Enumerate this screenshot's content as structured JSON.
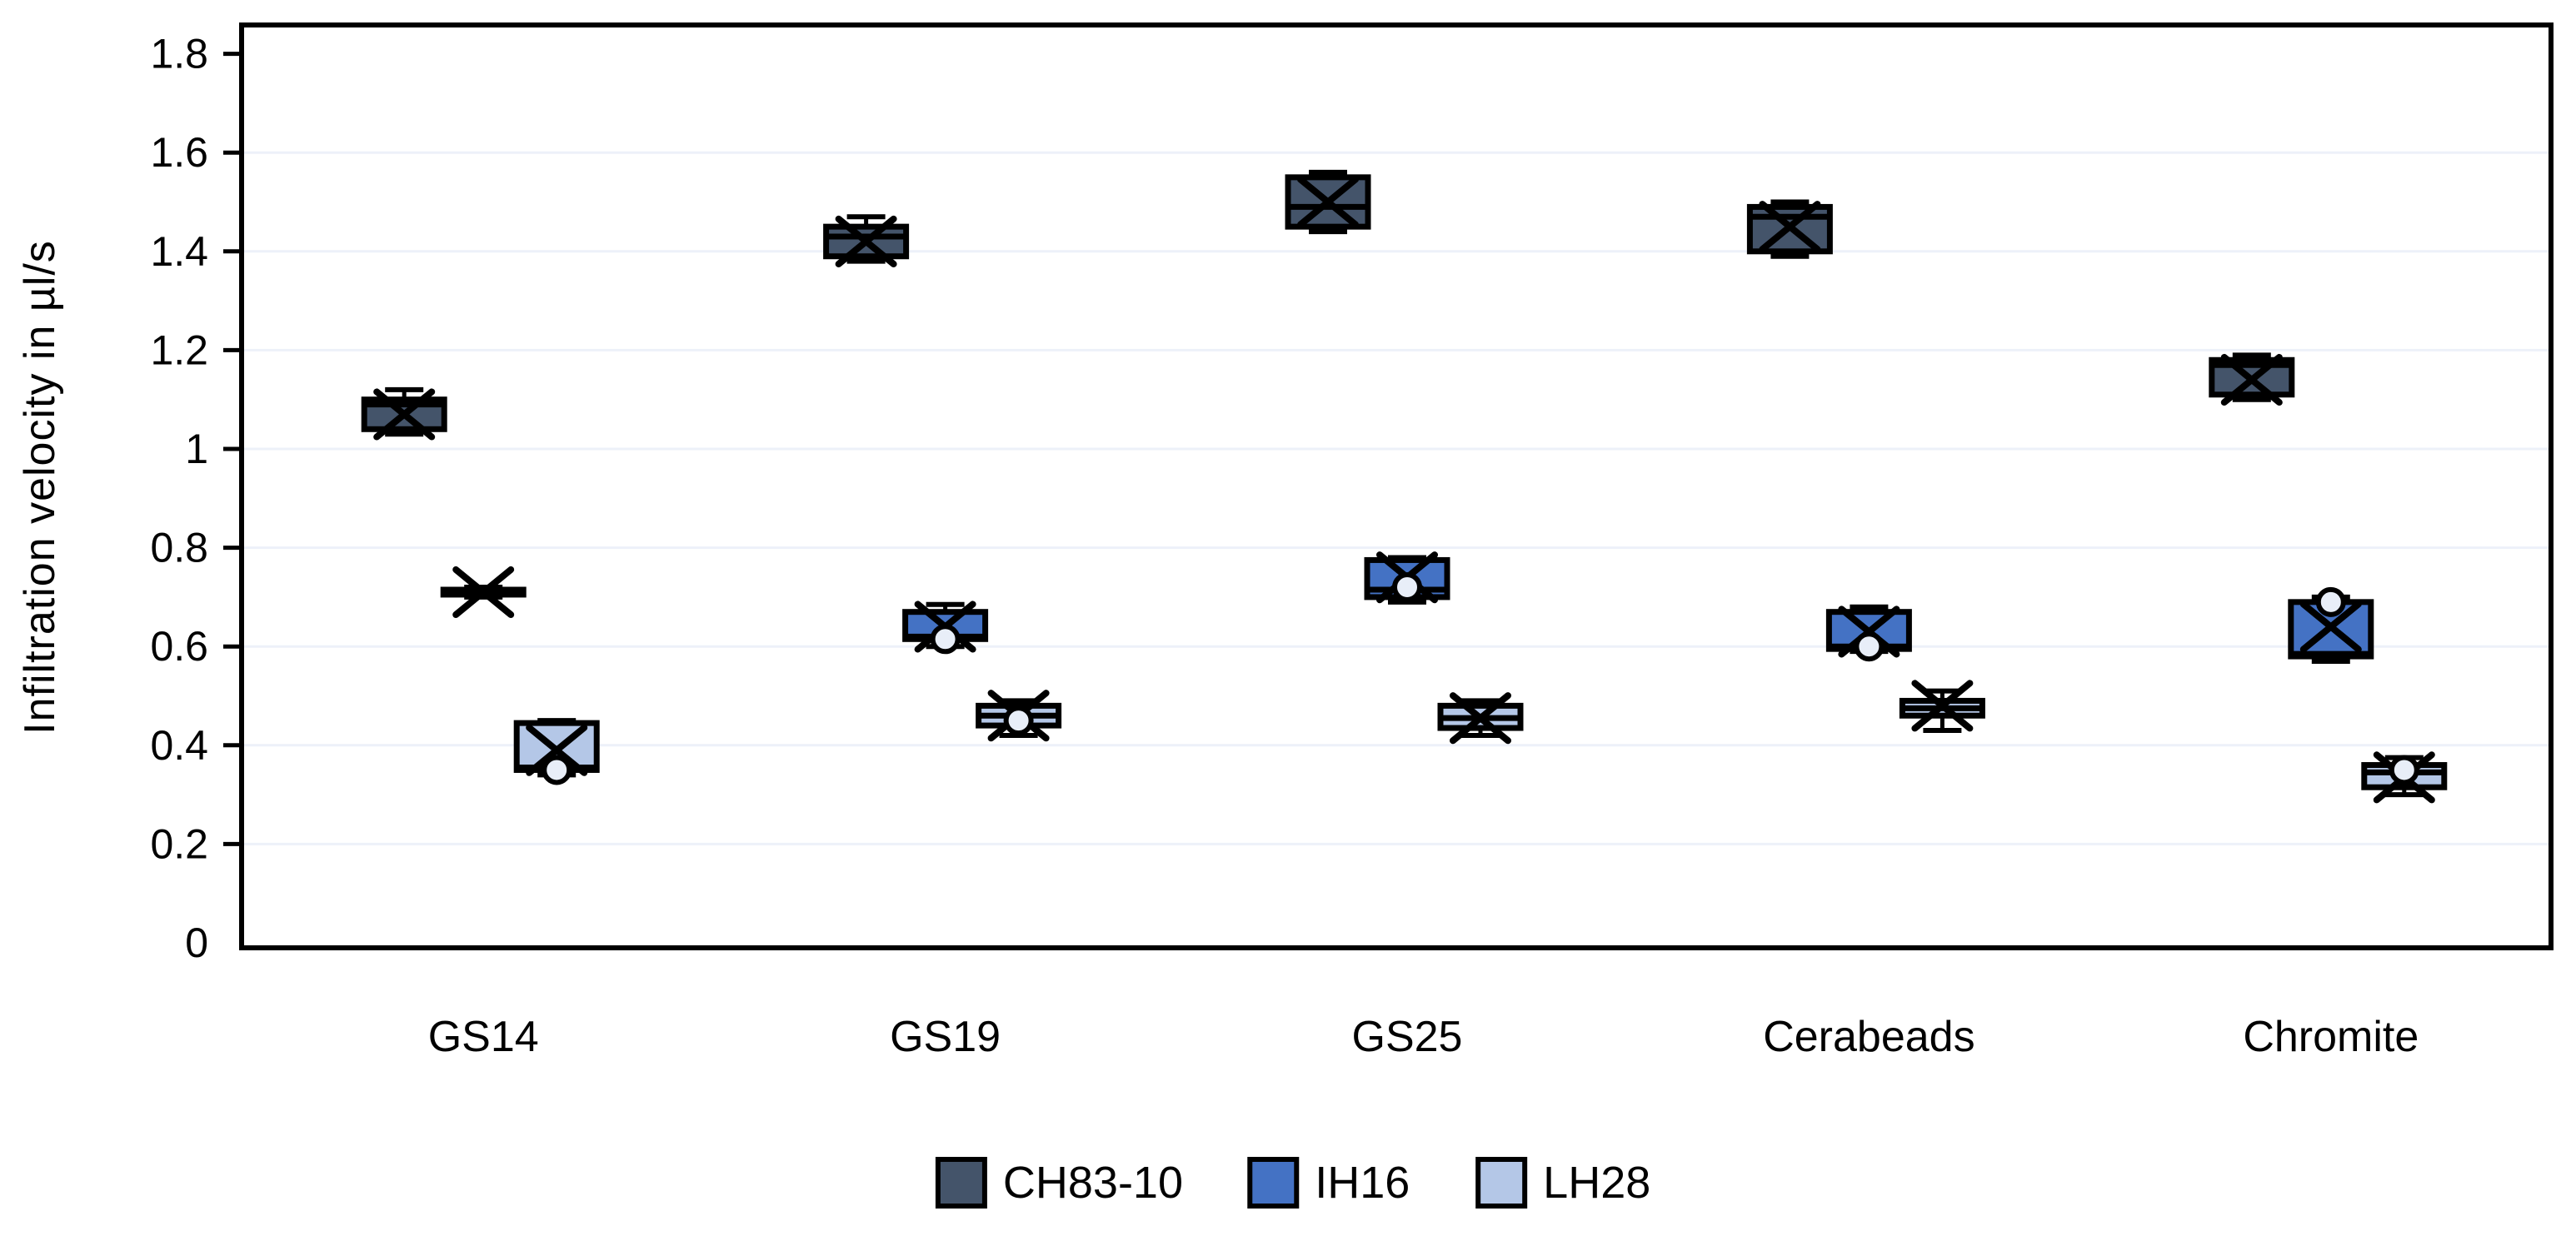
{
  "chart_data": {
    "type": "box",
    "title": "",
    "xlabel": "",
    "ylabel": "Infiltration velocity in µl/s",
    "ylim": [
      0,
      1.8
    ],
    "ytick_step": 0.2,
    "ytick_labels": [
      "0",
      "0.2",
      "0.4",
      "0.6",
      "0.8",
      "1",
      "1.2",
      "1.4",
      "1.6",
      "1.8"
    ],
    "grid": "faint horizontal gridlines every 0.2",
    "legend_position": "bottom-center",
    "categories": [
      "GS14",
      "GS19",
      "GS25",
      "Cerabeads",
      "Chromite"
    ],
    "series": [
      {
        "name": "CH83-10",
        "color": "#44546a",
        "boxes": [
          {
            "whisker_low": 1.03,
            "q1": 1.04,
            "median": 1.09,
            "q3": 1.1,
            "whisker_high": 1.12,
            "mean": 1.07,
            "outliers": []
          },
          {
            "whisker_low": 1.38,
            "q1": 1.39,
            "median": 1.43,
            "q3": 1.45,
            "whisker_high": 1.47,
            "mean": 1.42,
            "outliers": []
          },
          {
            "whisker_low": 1.44,
            "q1": 1.45,
            "median": 1.49,
            "q3": 1.55,
            "whisker_high": 1.56,
            "mean": 1.5,
            "outliers": []
          },
          {
            "whisker_low": 1.39,
            "q1": 1.4,
            "median": 1.47,
            "q3": 1.49,
            "whisker_high": 1.5,
            "mean": 1.45,
            "outliers": []
          },
          {
            "whisker_low": 1.1,
            "q1": 1.11,
            "median": 1.17,
            "q3": 1.18,
            "whisker_high": 1.19,
            "mean": 1.14,
            "outliers": []
          }
        ]
      },
      {
        "name": "IH16",
        "color": "#4472c4",
        "boxes": [
          {
            "whisker_low": 0.7,
            "q1": 0.705,
            "median": 0.71,
            "q3": 0.715,
            "whisker_high": 0.72,
            "mean": 0.71,
            "outliers": []
          },
          {
            "whisker_low": 0.6,
            "q1": 0.615,
            "median": 0.62,
            "q3": 0.67,
            "whisker_high": 0.685,
            "mean": 0.64,
            "outliers": [
              0.615
            ]
          },
          {
            "whisker_low": 0.69,
            "q1": 0.7,
            "median": 0.715,
            "q3": 0.775,
            "whisker_high": 0.78,
            "mean": 0.74,
            "outliers": [
              0.72
            ]
          },
          {
            "whisker_low": 0.59,
            "q1": 0.595,
            "median": 0.6,
            "q3": 0.67,
            "whisker_high": 0.68,
            "mean": 0.63,
            "outliers": [
              0.6
            ]
          },
          {
            "whisker_low": 0.57,
            "q1": 0.58,
            "median": 0.585,
            "q3": 0.69,
            "whisker_high": 0.7,
            "mean": 0.64,
            "outliers": [
              0.69
            ]
          }
        ]
      },
      {
        "name": "LH28",
        "color": "#b4c7e7",
        "boxes": [
          {
            "whisker_low": 0.34,
            "q1": 0.35,
            "median": 0.355,
            "q3": 0.445,
            "whisker_high": 0.45,
            "mean": 0.39,
            "outliers": [
              0.35
            ]
          },
          {
            "whisker_low": 0.42,
            "q1": 0.44,
            "median": 0.46,
            "q3": 0.48,
            "whisker_high": 0.49,
            "mean": 0.46,
            "outliers": [
              0.45
            ]
          },
          {
            "whisker_low": 0.42,
            "q1": 0.435,
            "median": 0.455,
            "q3": 0.48,
            "whisker_high": 0.49,
            "mean": 0.455,
            "outliers": []
          },
          {
            "whisker_low": 0.43,
            "q1": 0.46,
            "median": 0.475,
            "q3": 0.49,
            "whisker_high": 0.51,
            "mean": 0.48,
            "outliers": []
          },
          {
            "whisker_low": 0.3,
            "q1": 0.315,
            "median": 0.345,
            "q3": 0.36,
            "whisker_high": 0.375,
            "mean": 0.335,
            "outliers": [
              0.35
            ]
          }
        ]
      }
    ],
    "colors": {
      "box_border": "#000000",
      "gridline": "#edf1f9",
      "axis": "#000000",
      "text": "#000000",
      "background": "#ffffff"
    }
  }
}
